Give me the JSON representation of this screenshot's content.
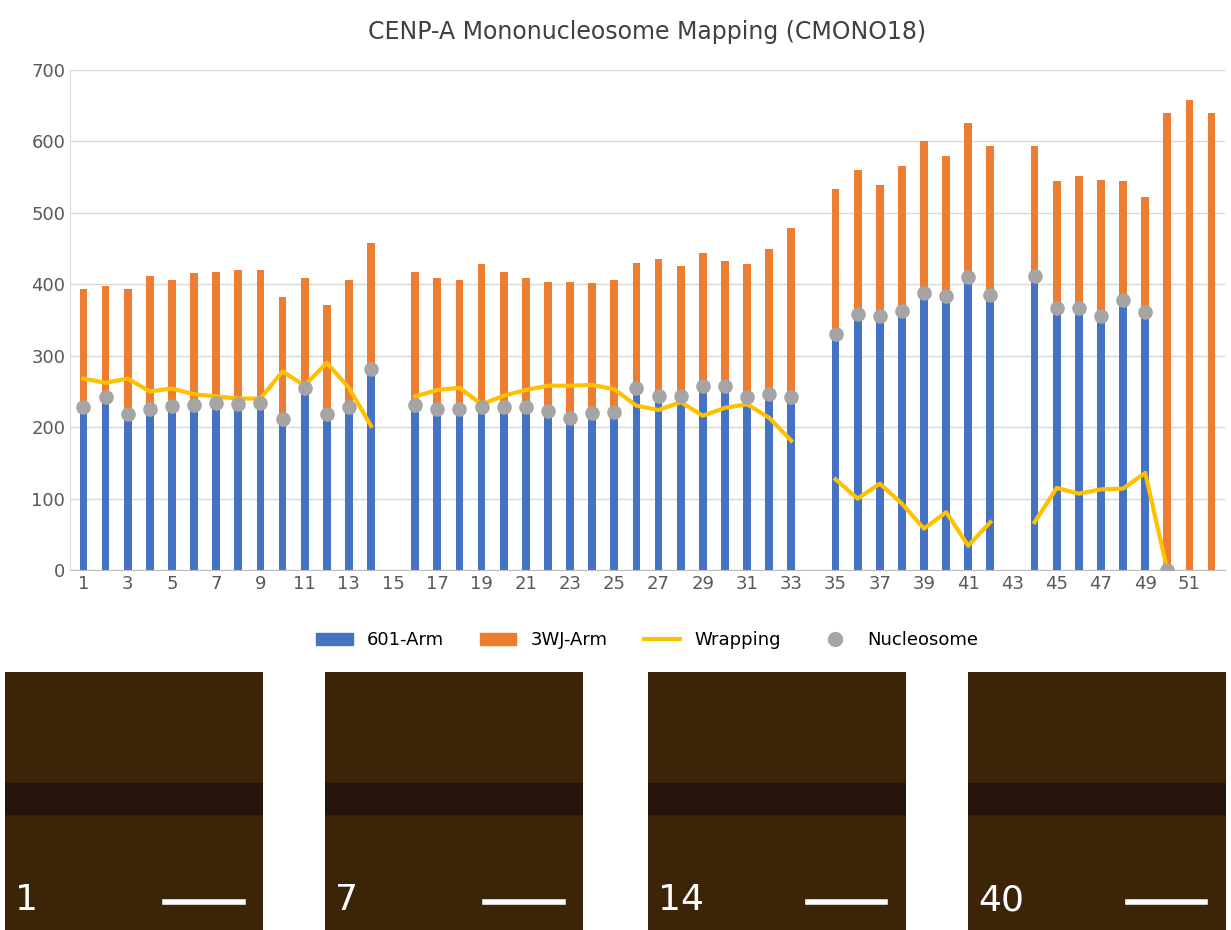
{
  "chart_data": {
    "type": "bar",
    "title": "CENP-A Mononucleosome Mapping (CMONO18)",
    "stacked": true,
    "grid": true,
    "legend": "bottom",
    "x": [
      1,
      2,
      3,
      4,
      5,
      6,
      7,
      8,
      9,
      10,
      11,
      12,
      13,
      14,
      15,
      16,
      17,
      18,
      19,
      20,
      21,
      22,
      23,
      24,
      25,
      26,
      27,
      28,
      29,
      30,
      31,
      32,
      33,
      34,
      35,
      36,
      37,
      38,
      39,
      40,
      41,
      42,
      43,
      44,
      45,
      46,
      47,
      48,
      49,
      50,
      51,
      52
    ],
    "xlim": [
      0.4,
      52.6
    ],
    "xticks": [
      1,
      3,
      5,
      7,
      9,
      11,
      13,
      15,
      17,
      19,
      21,
      23,
      25,
      27,
      29,
      31,
      33,
      35,
      37,
      39,
      41,
      43,
      45,
      47,
      49,
      51
    ],
    "ylim": [
      0,
      700
    ],
    "yticks": [
      0,
      100,
      200,
      300,
      400,
      500,
      600,
      700
    ],
    "series": [
      {
        "name": "601-Arm",
        "type": "bar",
        "color": "#4472c4",
        "values": [
          228,
          242,
          218,
          226,
          229,
          231,
          234,
          233,
          234,
          212,
          255,
          218,
          228,
          282,
          null,
          231,
          226,
          226,
          228,
          228,
          228,
          222,
          213,
          220,
          221,
          255,
          244,
          244,
          257,
          257,
          242,
          247,
          242,
          null,
          331,
          358,
          355,
          363,
          388,
          383,
          410,
          385,
          null,
          412,
          367,
          366,
          355,
          378,
          361,
          0,
          null,
          null
        ]
      },
      {
        "name": "3WJ-Arm",
        "type": "bar",
        "color": "#ed7d31",
        "values": [
          165,
          156,
          175,
          185,
          177,
          184,
          183,
          187,
          186,
          170,
          154,
          153,
          178,
          175,
          null,
          186,
          183,
          180,
          200,
          189,
          181,
          181,
          190,
          181,
          185,
          175,
          191,
          182,
          187,
          176,
          186,
          202,
          237,
          null,
          202,
          202,
          184,
          203,
          213,
          197,
          216,
          208,
          null,
          181,
          177,
          186,
          191,
          166,
          161,
          639,
          658,
          640
        ]
      },
      {
        "name": "Wrapping",
        "type": "line",
        "color": "#ffc000",
        "values": [
          268,
          262,
          268,
          250,
          254,
          246,
          243,
          240,
          240,
          278,
          258,
          290,
          255,
          202,
          null,
          243,
          252,
          255,
          232,
          244,
          252,
          258,
          258,
          259,
          253,
          230,
          224,
          235,
          216,
          227,
          232,
          213,
          181,
          null,
          127,
          100,
          121,
          93,
          58,
          81,
          34,
          67,
          null,
          67,
          115,
          107,
          113,
          114,
          136,
          0,
          null,
          null
        ]
      },
      {
        "name": "Nucleosome",
        "type": "scatter",
        "color": "#a5a5a5",
        "marker": "circle",
        "values": [
          228,
          242,
          218,
          226,
          229,
          231,
          234,
          233,
          234,
          212,
          255,
          218,
          228,
          282,
          null,
          231,
          226,
          226,
          228,
          228,
          228,
          222,
          213,
          220,
          221,
          255,
          244,
          244,
          257,
          257,
          242,
          247,
          242,
          null,
          331,
          358,
          355,
          363,
          388,
          383,
          410,
          385,
          null,
          412,
          367,
          366,
          355,
          378,
          361,
          0,
          null,
          null
        ]
      }
    ]
  },
  "image_panels": {
    "labels": [
      "1",
      "7",
      "14",
      "40"
    ]
  }
}
